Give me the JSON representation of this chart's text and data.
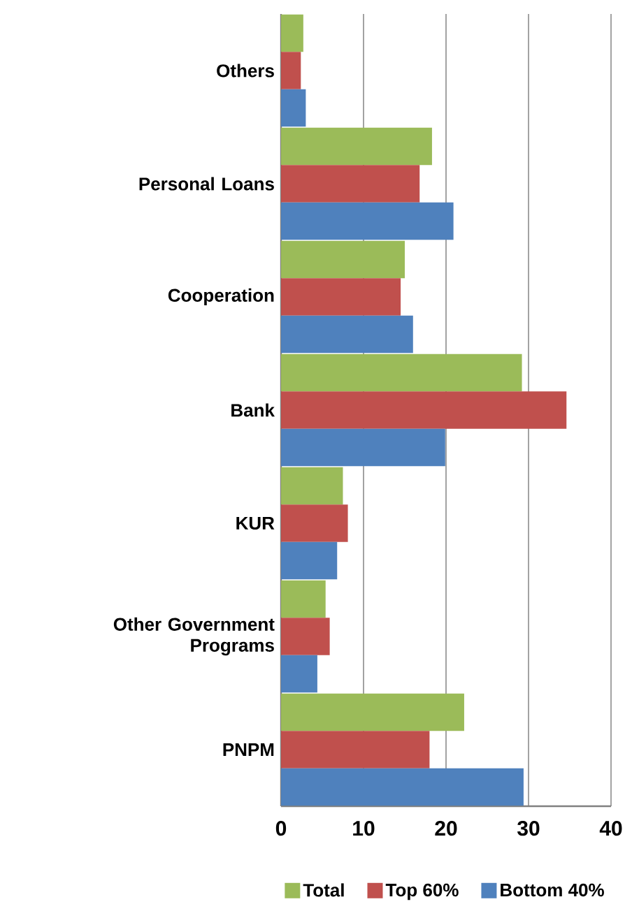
{
  "chart_data": {
    "type": "bar",
    "orientation": "horizontal",
    "categories": [
      "Others",
      "Personal Loans",
      "Cooperation",
      "Bank",
      "KUR",
      "Other Government Programs",
      "PNPM"
    ],
    "series": [
      {
        "name": "Total",
        "color": "#9bbb59",
        "values": [
          2.7,
          18.3,
          15.0,
          29.2,
          7.5,
          5.4,
          22.2
        ]
      },
      {
        "name": "Top 60%",
        "color": "#c0504d",
        "values": [
          2.4,
          16.8,
          14.5,
          34.6,
          8.1,
          5.9,
          18.0
        ]
      },
      {
        "name": "Bottom 40%",
        "color": "#4f81bd",
        "values": [
          3.0,
          20.9,
          16.0,
          19.9,
          6.8,
          4.4,
          29.4
        ]
      }
    ],
    "xlim": [
      0,
      40
    ],
    "xticks": [
      0,
      10,
      20,
      30,
      40
    ],
    "grid": "x",
    "legend": "bottom"
  }
}
